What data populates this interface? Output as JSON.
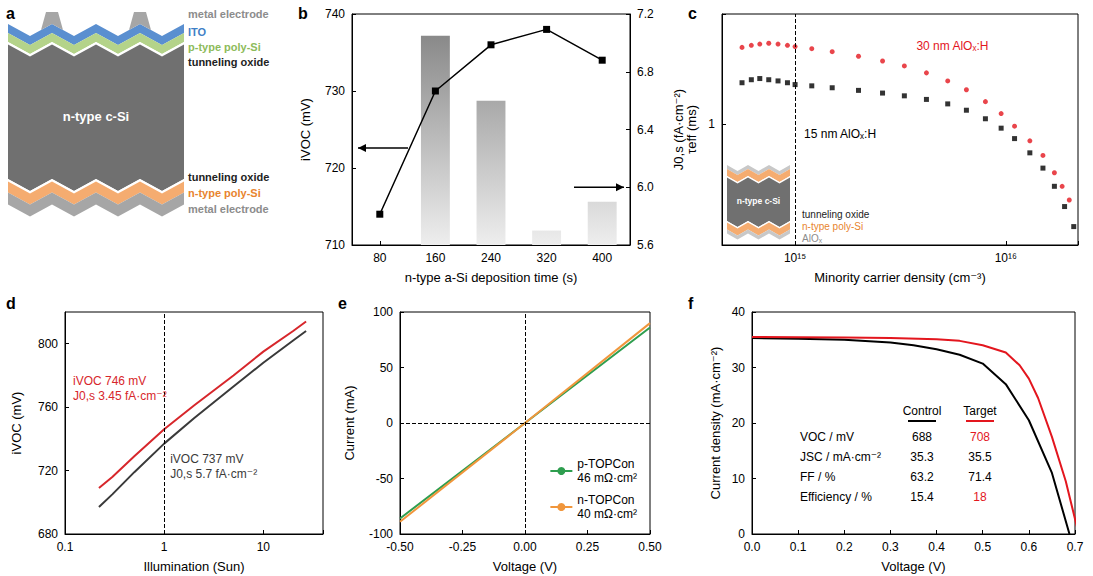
{
  "diagram": {
    "panel": "a",
    "layers": [
      {
        "label": "metal electrode",
        "color": "#8c8c8c"
      },
      {
        "label": "ITO",
        "color": "#3f7fc6"
      },
      {
        "label": "p-type poly-Si",
        "color": "#8dbb5a"
      },
      {
        "label": "tunneling oxide",
        "color": "#222222"
      },
      {
        "label": "n-type c-Si",
        "color": "#ffffff"
      },
      {
        "label": "tunneling oxide",
        "color": "#222222"
      },
      {
        "label": "n-type poly-Si",
        "color": "#e8842e"
      },
      {
        "label": "metal electrode",
        "color": "#8c8c8c"
      }
    ]
  },
  "chart_data": [
    {
      "panel": "b",
      "type": "bar",
      "x_label": "n-type a-Si deposition time (s)",
      "y_label": "iVOC (mV)",
      "y2_label": "J0,s (fA·cm⁻²)",
      "categories": [
        "80",
        "160",
        "240",
        "320",
        "400"
      ],
      "ylim": [
        710,
        740
      ],
      "yticks": [
        710,
        720,
        730,
        740
      ],
      "y2lim": [
        5.6,
        7.2
      ],
      "y2ticks": [
        5.6,
        {
          "value": 6,
          "label": "6.0"
        },
        6.4,
        6.8,
        7.2
      ],
      "series": [
        {
          "type": "line",
          "color": "#000000",
          "marker": "square",
          "values": [
            714,
            730,
            736,
            738,
            734
          ]
        },
        {
          "type": "bar",
          "axis": "y2",
          "color": "#7f7f7f",
          "values": [
            null,
            7.05,
            6.6,
            5.7,
            5.9
          ]
        }
      ]
    },
    {
      "panel": "c",
      "type": "scatter",
      "log": true,
      "x_label": "Minority carrier density (cm⁻³)",
      "y_label": "τeff (ms)",
      "xlim": [
        450000000000000.0,
        2.2e+16
      ],
      "xticks": [
        {
          "value": 1000000000000000.0,
          "label": "10¹⁵"
        },
        {
          "value": 1e+16,
          "label": "10¹⁶"
        }
      ],
      "ylim": [
        0.28,
        3.2
      ],
      "yticks": [
        1
      ],
      "reference_lines": [
        {
          "axis": "x",
          "value": 1000000000000000.0,
          "line_style": "dashed"
        }
      ],
      "series": [
        {
          "name": "30 nm AlOₓ:H",
          "color": "#e3161e",
          "marker": "circle",
          "x": [
            560000000000000.0,
            620000000000000.0,
            680000000000000.0,
            750000000000000.0,
            830000000000000.0,
            920000000000000.0,
            1000000000000000.0,
            1200000000000000.0,
            1500000000000000.0,
            2000000000000000.0,
            2600000000000000.0,
            3300000000000000.0,
            4200000000000000.0,
            5300000000000000.0,
            6500000000000000.0,
            8000000000000000.0,
            9500000000000000.0,
            1.1e+16,
            1.3e+16,
            1.5e+16,
            1.7e+16,
            1.85e+16,
            2e+16
          ],
          "values": [
            2.25,
            2.3,
            2.33,
            2.35,
            2.33,
            2.3,
            2.27,
            2.22,
            2.15,
            2.05,
            1.95,
            1.85,
            1.72,
            1.58,
            1.44,
            1.27,
            1.12,
            0.98,
            0.84,
            0.72,
            0.6,
            0.52,
            0.45
          ]
        },
        {
          "name": "15 nm AlOₓ:H",
          "color": "#000000",
          "marker": "square",
          "x": [
            560000000000000.0,
            620000000000000.0,
            680000000000000.0,
            750000000000000.0,
            830000000000000.0,
            920000000000000.0,
            1000000000000000.0,
            1200000000000000.0,
            1500000000000000.0,
            2000000000000000.0,
            2600000000000000.0,
            3300000000000000.0,
            4200000000000000.0,
            5300000000000000.0,
            6500000000000000.0,
            8000000000000000.0,
            9500000000000000.0,
            1.1e+16,
            1.3e+16,
            1.5e+16,
            1.7e+16,
            1.9e+16,
            2.1e+16
          ],
          "values": [
            1.55,
            1.6,
            1.62,
            1.6,
            1.58,
            1.55,
            1.52,
            1.5,
            1.47,
            1.43,
            1.39,
            1.35,
            1.3,
            1.24,
            1.16,
            1.06,
            0.96,
            0.86,
            0.74,
            0.63,
            0.52,
            0.42,
            0.34
          ]
        }
      ],
      "inset": {
        "layers": [
          {
            "label": "n-type c-Si",
            "color": "#ffffff"
          },
          {
            "label": "tunneling oxide",
            "color": "#222222"
          },
          {
            "label": "n-type poly-Si",
            "color": "#e8842e"
          },
          {
            "label": "AlOₓ",
            "color": "#8c8c8c"
          }
        ]
      }
    },
    {
      "panel": "d",
      "type": "line",
      "log": "x",
      "x_label": "Illumination (Sun)",
      "y_label": "iVOC (mV)",
      "xlim": [
        0.1,
        40
      ],
      "xticks": [
        0.1,
        1,
        10
      ],
      "ylim": [
        680,
        820
      ],
      "yticks": [
        680,
        720,
        760,
        800
      ],
      "reference_lines": [
        {
          "axis": "x",
          "value": 1,
          "line_style": "dashed"
        }
      ],
      "series": [
        {
          "color": "#d7262b",
          "x": [
            0.22,
            0.3,
            0.5,
            1,
            2,
            5,
            10,
            20,
            27
          ],
          "values": [
            709,
            716,
            729,
            746,
            761,
            780,
            795,
            808,
            814
          ],
          "annotation": [
            "iVOC 746 mV",
            "J0,s 3.45 fA·cm⁻²"
          ]
        },
        {
          "color": "#3a3a3a",
          "x": [
            0.22,
            0.3,
            0.5,
            1,
            2,
            5,
            10,
            20,
            27
          ],
          "values": [
            697,
            705,
            719,
            737,
            753,
            773,
            788,
            802,
            808
          ],
          "annotation": [
            "iVOC 737 mV",
            "J0,s 5.7 fA·cm⁻²"
          ]
        }
      ]
    },
    {
      "panel": "e",
      "type": "line",
      "x_label": "Voltage (V)",
      "y_label": "Current (mA)",
      "xlim": [
        -0.5,
        0.5
      ],
      "xticks": [
        {
          "value": -0.5,
          "label": "-0.50"
        },
        -0.25,
        {
          "value": 0,
          "label": "0.00"
        },
        0.25,
        {
          "value": 0.5,
          "label": "0.50"
        }
      ],
      "ylim": [
        -100,
        100
      ],
      "yticks": [
        -100,
        -50,
        0,
        50,
        100
      ],
      "legend": "lower right",
      "reference_lines": [
        {
          "axis": "x",
          "value": 0,
          "line_style": "dashed"
        },
        {
          "axis": "y",
          "value": 0,
          "line_style": "dashed"
        }
      ],
      "series": [
        {
          "name": "p-TOPCon",
          "label": "46 mΩ·cm²",
          "color": "#2e9e4f",
          "x": [
            -0.5,
            0,
            0.5
          ],
          "values": [
            -86,
            0,
            86
          ]
        },
        {
          "name": "n-TOPCon",
          "label": "40 mΩ·cm²",
          "color": "#f0963c",
          "x": [
            -0.5,
            0,
            0.5
          ],
          "values": [
            -89,
            0,
            90
          ]
        }
      ]
    },
    {
      "panel": "f",
      "type": "line",
      "x_label": "Voltage (V)",
      "y_label": "Current density (mA·cm⁻²)",
      "xlim": [
        0,
        0.7
      ],
      "xticks": [
        {
          "value": 0,
          "label": "0.0"
        },
        0.1,
        0.2,
        0.3,
        0.4,
        0.5,
        0.6,
        0.7
      ],
      "ylim": [
        0,
        40
      ],
      "yticks": [
        0,
        10,
        20,
        30,
        40
      ],
      "series": [
        {
          "name": "Control",
          "color": "#000000",
          "x": [
            0,
            0.1,
            0.2,
            0.3,
            0.35,
            0.4,
            0.45,
            0.5,
            0.55,
            0.6,
            0.65,
            0.688
          ],
          "values": [
            35.3,
            35.2,
            35.0,
            34.5,
            34.0,
            33.3,
            32.3,
            30.7,
            27.0,
            20.5,
            11.0,
            0
          ]
        },
        {
          "name": "Target",
          "color": "#e3161e",
          "x": [
            0,
            0.1,
            0.2,
            0.3,
            0.4,
            0.45,
            0.5,
            0.55,
            0.58,
            0.6,
            0.62,
            0.65,
            0.68,
            0.708
          ],
          "values": [
            35.5,
            35.45,
            35.4,
            35.3,
            35.1,
            34.8,
            34.0,
            32.7,
            30.4,
            28.0,
            24.5,
            17.5,
            9.5,
            0
          ]
        }
      ],
      "table": {
        "rows": [
          {
            "label": "VOC / mV",
            "values": [
              688,
              708
            ],
            "colors": [
              "#000000",
              "#e3161e"
            ]
          },
          {
            "label": "JSC / mA·cm⁻²",
            "values": [
              35.3,
              35.5
            ],
            "colors": [
              "#000000",
              "#000000"
            ]
          },
          {
            "label": "FF / %",
            "values": [
              63.2,
              71.4
            ],
            "colors": [
              "#000000",
              "#000000"
            ]
          },
          {
            "label": "Efficiency / %",
            "values": [
              15.4,
              18
            ],
            "colors": [
              "#000000",
              "#e3161e"
            ]
          }
        ]
      }
    }
  ]
}
